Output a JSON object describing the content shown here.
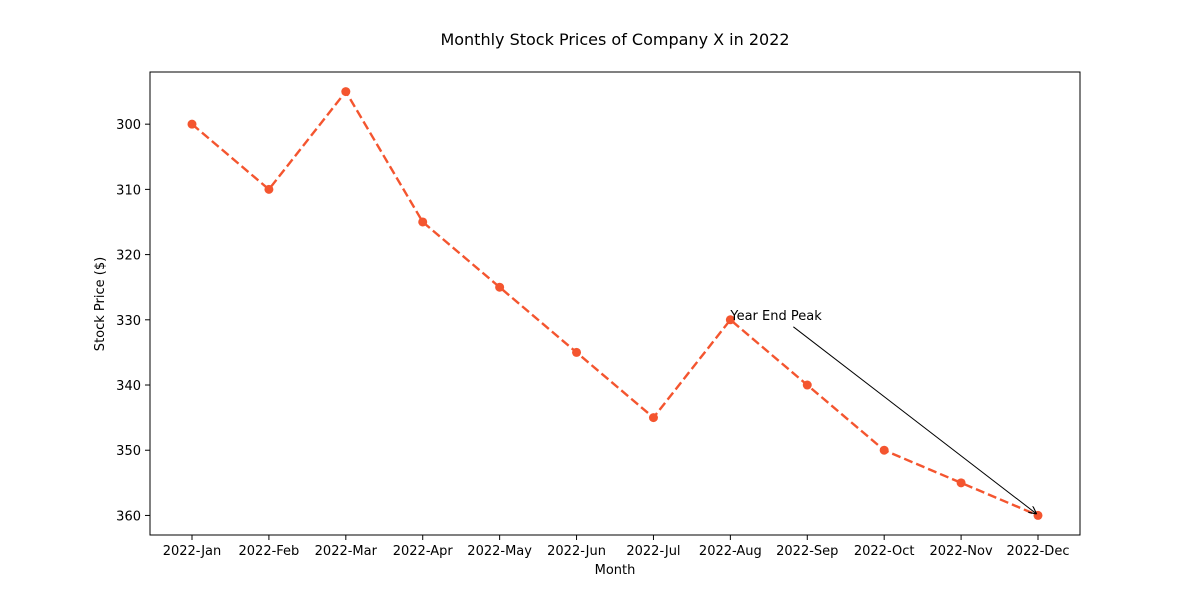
{
  "chart_data": {
    "type": "line",
    "title": "Monthly Stock Prices of Company X in 2022",
    "xlabel": "Month",
    "ylabel": "Stock Price ($)",
    "y_inverted": true,
    "ylim": [
      363,
      292
    ],
    "categories": [
      "2022-Jan",
      "2022-Feb",
      "2022-Mar",
      "2022-Apr",
      "2022-May",
      "2022-Jun",
      "2022-Jul",
      "2022-Aug",
      "2022-Sep",
      "2022-Oct",
      "2022-Nov",
      "2022-Dec"
    ],
    "yticks": [
      300,
      310,
      320,
      330,
      340,
      350,
      360
    ],
    "series": [
      {
        "values": [
          300,
          310,
          295,
          315,
          325,
          335,
          345,
          330,
          340,
          350,
          355,
          360
        ],
        "color": "#f4552f",
        "line_style": "dashed",
        "marker": "circle"
      }
    ],
    "annotation": {
      "text": "Year End Peak",
      "text_x": "2022-Aug",
      "text_y": 330,
      "arrow_to_x": "2022-Dec",
      "arrow_to_y": 360
    },
    "grid": false,
    "legend": "none"
  }
}
